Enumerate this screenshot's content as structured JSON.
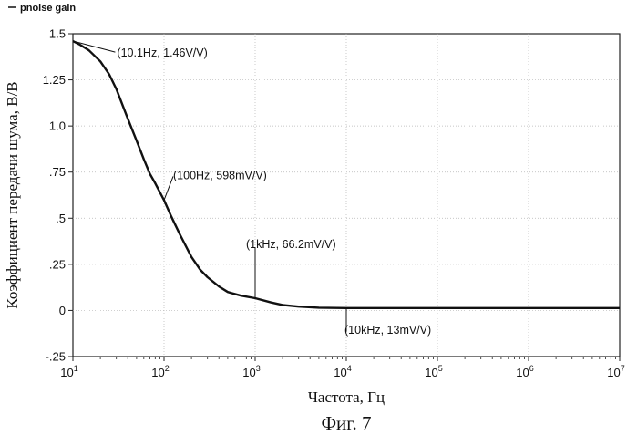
{
  "chart_data": {
    "type": "line",
    "title": "",
    "xlabel": "Частота, Гц",
    "ylabel": "Коэффициент передачи шума, В/В",
    "caption": "Фиг. 7",
    "x_scale": "log",
    "xlim": [
      10,
      10000000
    ],
    "ylim": [
      -0.25,
      1.5
    ],
    "grid": true,
    "legend_position": "top-left",
    "x_ticks": [
      {
        "value": 10,
        "base": "10",
        "exp": "1"
      },
      {
        "value": 100,
        "base": "10",
        "exp": "2"
      },
      {
        "value": 1000,
        "base": "10",
        "exp": "3"
      },
      {
        "value": 10000,
        "base": "10",
        "exp": "4"
      },
      {
        "value": 100000,
        "base": "10",
        "exp": "5"
      },
      {
        "value": 1000000,
        "base": "10",
        "exp": "6"
      },
      {
        "value": 10000000,
        "base": "10",
        "exp": "7"
      }
    ],
    "y_ticks": [
      {
        "value": 1.5,
        "label": "1.5"
      },
      {
        "value": 1.25,
        "label": "1.25"
      },
      {
        "value": 1.0,
        "label": "1.0"
      },
      {
        "value": 0.75,
        "label": ".75"
      },
      {
        "value": 0.5,
        "label": ".5"
      },
      {
        "value": 0.25,
        "label": ".25"
      },
      {
        "value": 0,
        "label": "0"
      },
      {
        "value": -0.25,
        "label": "-.25"
      }
    ],
    "series": [
      {
        "name": "pnoise gain",
        "color": "#111111",
        "x": [
          10,
          12,
          15,
          20,
          25,
          30,
          40,
          50,
          60,
          70,
          80,
          100,
          120,
          150,
          200,
          250,
          300,
          400,
          500,
          700,
          1000,
          1500,
          2000,
          3000,
          5000,
          10000,
          100000,
          1000000,
          10000000
        ],
        "y": [
          1.46,
          1.44,
          1.41,
          1.35,
          1.28,
          1.2,
          1.04,
          0.92,
          0.82,
          0.74,
          0.69,
          0.598,
          0.51,
          0.41,
          0.29,
          0.22,
          0.18,
          0.13,
          0.1,
          0.08,
          0.0662,
          0.043,
          0.03,
          0.021,
          0.015,
          0.013,
          0.013,
          0.013,
          0.013
        ]
      }
    ],
    "annotations": [
      {
        "x": 10.1,
        "y": 1.46,
        "text": "(10.1Hz, 1.46V/V)"
      },
      {
        "x": 100,
        "y": 0.598,
        "text": "(100Hz, 598mV/V)"
      },
      {
        "x": 1000,
        "y": 0.0662,
        "text": "(1kHz, 66.2mV/V)"
      },
      {
        "x": 10000,
        "y": 0.013,
        "text": "(10kHz, 13mV/V)"
      }
    ]
  }
}
